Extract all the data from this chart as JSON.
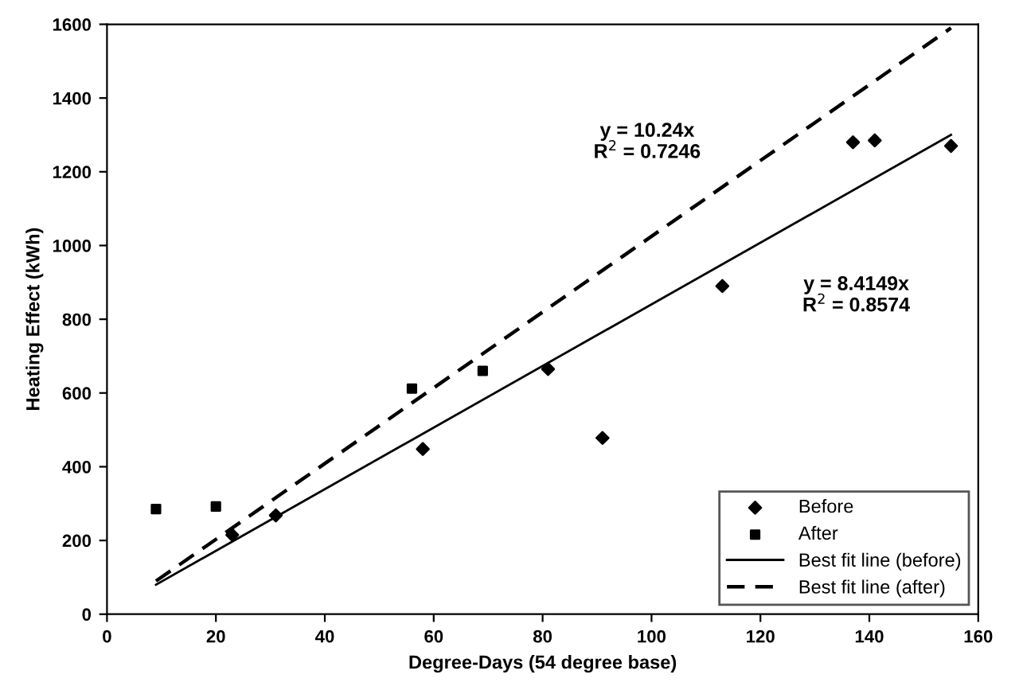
{
  "chart_data": {
    "type": "scatter",
    "xlabel": "Degree-Days (54 degree base)",
    "ylabel": "Heating Effect (kWh)",
    "xlim": [
      0,
      160
    ],
    "xticks": [
      0,
      20,
      40,
      60,
      80,
      100,
      120,
      140,
      160
    ],
    "ylim": [
      0,
      1600
    ],
    "yticks": [
      0,
      200,
      400,
      600,
      800,
      1000,
      1200,
      1400,
      1600
    ],
    "grid": false,
    "legend": "bottom right",
    "series": [
      {
        "name": "Before",
        "marker": "diamond",
        "color": "#000000",
        "x": [
          23,
          31,
          58,
          81,
          91,
          113,
          137,
          141,
          155
        ],
        "values": [
          215,
          268,
          448,
          665,
          478,
          890,
          1280,
          1285,
          1270
        ]
      },
      {
        "name": "After",
        "marker": "square",
        "color": "#000000",
        "x": [
          9,
          20,
          56,
          69
        ],
        "values": [
          285,
          292,
          612,
          660
        ]
      },
      {
        "name": "Best fit line (before)",
        "type": "line",
        "line_style": "solid",
        "color": "#000000",
        "x": [
          9,
          155
        ],
        "values": [
          80,
          1300
        ]
      },
      {
        "name": "Best fit line (after)",
        "type": "line",
        "line_style": "dashed",
        "color": "#000000",
        "x": [
          9,
          155
        ],
        "values": [
          90,
          1590
        ]
      }
    ],
    "annotations": [
      "y = 10.24x\nR$^{2}$ = 0.7246",
      "y = 8.4149x\nR$^{2}$ = 0.8574"
    ]
  }
}
